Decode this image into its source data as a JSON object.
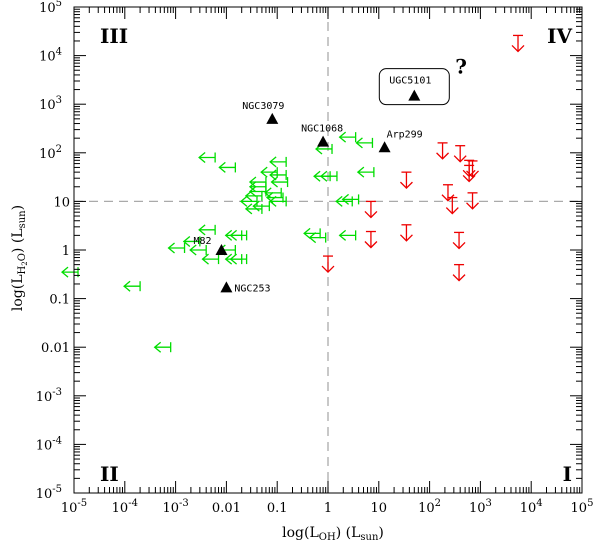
{
  "chart_data": {
    "type": "scatter",
    "title": "",
    "xlabel_main": "log(L",
    "xlabel_sub": "OH",
    "xlabel_tail": ")  (L",
    "xlabel_sub2": "sun",
    "xlabel_end": ")",
    "ylabel_main": "log(L",
    "ylabel_sub": "H",
    "ylabel_subsub": "2",
    "ylabel_sub_o": "O",
    "ylabel_tail": ")  (L",
    "ylabel_sub2": "sun",
    "ylabel_end": ")",
    "xscale": "log",
    "yscale": "log",
    "xlim": [
      1e-05,
      100000
    ],
    "ylim": [
      1e-05,
      100000
    ],
    "x_ticks": [
      {
        "v": 1e-05,
        "label": "10",
        "exp": "-5"
      },
      {
        "v": 0.0001,
        "label": "10",
        "exp": "-4"
      },
      {
        "v": 0.001,
        "label": "10",
        "exp": "-3"
      },
      {
        "v": 0.01,
        "label": "0.01",
        "exp": ""
      },
      {
        "v": 0.1,
        "label": "0.1",
        "exp": ""
      },
      {
        "v": 1,
        "label": "1",
        "exp": ""
      },
      {
        "v": 10,
        "label": "10",
        "exp": ""
      },
      {
        "v": 100,
        "label": "10",
        "exp": "2"
      },
      {
        "v": 1000,
        "label": "10",
        "exp": "3"
      },
      {
        "v": 10000,
        "label": "10",
        "exp": "4"
      },
      {
        "v": 100000,
        "label": "10",
        "exp": "5"
      }
    ],
    "y_ticks": [
      {
        "v": 1e-05,
        "label": "10",
        "exp": "-5"
      },
      {
        "v": 0.0001,
        "label": "10",
        "exp": "-4"
      },
      {
        "v": 0.001,
        "label": "10",
        "exp": "-3"
      },
      {
        "v": 0.01,
        "label": "0.01",
        "exp": ""
      },
      {
        "v": 0.1,
        "label": "0.1",
        "exp": ""
      },
      {
        "v": 1,
        "label": "1",
        "exp": ""
      },
      {
        "v": 10,
        "label": "10",
        "exp": ""
      },
      {
        "v": 100,
        "label": "10",
        "exp": "2"
      },
      {
        "v": 1000,
        "label": "10",
        "exp": "3"
      },
      {
        "v": 10000,
        "label": "10",
        "exp": "4"
      },
      {
        "v": 100000,
        "label": "10",
        "exp": "5"
      }
    ],
    "reference_lines": {
      "x": 1,
      "y": 10,
      "style": "dashed",
      "color": "#aaaaaa"
    },
    "quadrants": [
      {
        "label": "III",
        "position": "top-left"
      },
      {
        "label": "IV",
        "position": "top-right"
      },
      {
        "label": "II",
        "position": "bottom-left"
      },
      {
        "label": "I",
        "position": "bottom-right"
      }
    ],
    "detections": {
      "marker": "filled-triangle",
      "color": "#000000",
      "points": [
        {
          "name": "NGC3079",
          "x": 0.08,
          "y": 500
        },
        {
          "name": "NGC1068",
          "x": 0.8,
          "y": 170
        },
        {
          "name": "Arp299",
          "x": 13,
          "y": 130
        },
        {
          "name": "M82",
          "x": 0.008,
          "y": 1.0
        },
        {
          "name": "NGC253",
          "x": 0.01,
          "y": 0.17
        },
        {
          "name": "UGC5101",
          "x": 50,
          "y": 1500
        }
      ]
    },
    "boxed_label": "UGC5101",
    "question_mark": "?",
    "oh_upper_limits": {
      "marker": "left-arrow",
      "color": "#00dd00",
      "points": [
        [
          1.2e-05,
          0.35
        ],
        [
          0.0002,
          0.18
        ],
        [
          0.0008,
          0.01
        ],
        [
          0.0015,
          1.1
        ],
        [
          0.003,
          1.5
        ],
        [
          0.004,
          1.0
        ],
        [
          0.006,
          80
        ],
        [
          0.006,
          2.6
        ],
        [
          0.007,
          0.65
        ],
        [
          0.015,
          50
        ],
        [
          0.015,
          1.0
        ],
        [
          0.02,
          0.65
        ],
        [
          0.02,
          2.0
        ],
        [
          0.025,
          0.65
        ],
        [
          0.025,
          2.0
        ],
        [
          0.04,
          10
        ],
        [
          0.05,
          13
        ],
        [
          0.05,
          7
        ],
        [
          0.06,
          20
        ],
        [
          0.06,
          25
        ],
        [
          0.06,
          16
        ],
        [
          0.07,
          8
        ],
        [
          0.1,
          40
        ],
        [
          0.12,
          15
        ],
        [
          0.13,
          12
        ],
        [
          0.15,
          65
        ],
        [
          0.15,
          35
        ],
        [
          0.15,
          10
        ],
        [
          0.16,
          25
        ],
        [
          0.7,
          2.2
        ],
        [
          0.9,
          1.8
        ],
        [
          1.1,
          33
        ],
        [
          1.2,
          120
        ],
        [
          1.5,
          33
        ],
        [
          3,
          10
        ],
        [
          3.5,
          210
        ],
        [
          3.5,
          2.0
        ],
        [
          4.0,
          11
        ],
        [
          7.5,
          160
        ],
        [
          8,
          40
        ]
      ]
    },
    "h2o_upper_limits": {
      "marker": "down-arrow",
      "color": "#ee0000",
      "points": [
        [
          1,
          0.75
        ],
        [
          7,
          10
        ],
        [
          7,
          2.4
        ],
        [
          35,
          3.3
        ],
        [
          35,
          40
        ],
        [
          180,
          160
        ],
        [
          230,
          22
        ],
        [
          280,
          12
        ],
        [
          380,
          2.3
        ],
        [
          380,
          0.5
        ],
        [
          400,
          140
        ],
        [
          600,
          70
        ],
        [
          600,
          55
        ],
        [
          700,
          68
        ],
        [
          700,
          15
        ],
        [
          5500,
          26000
        ]
      ]
    }
  }
}
